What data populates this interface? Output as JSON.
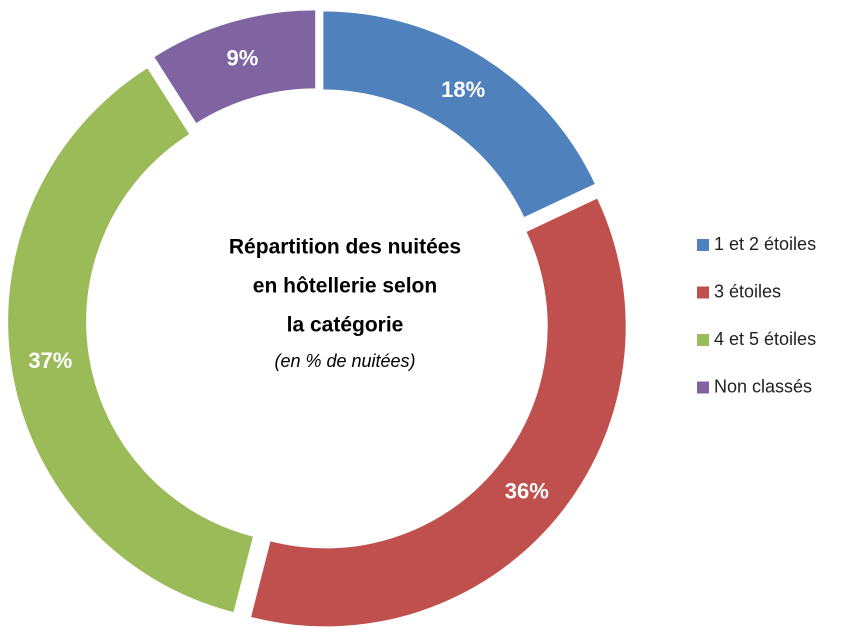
{
  "chart_data": {
    "type": "donut",
    "title": [
      "Répartition des nuitées",
      "en hôtellerie selon",
      "la catégorie"
    ],
    "subtitle": "(en % de nuitées)",
    "categories": [
      "1 et 2 étoiles",
      "3 étoiles",
      "4 et 5 étoiles",
      "Non classés"
    ],
    "values": [
      18,
      36,
      37,
      9
    ],
    "value_labels": [
      "18%",
      "36%",
      "37%",
      "9%"
    ],
    "colors": [
      "#4f81bd",
      "#c0504d",
      "#9bbb59",
      "#8064a2"
    ],
    "legend": "right"
  }
}
